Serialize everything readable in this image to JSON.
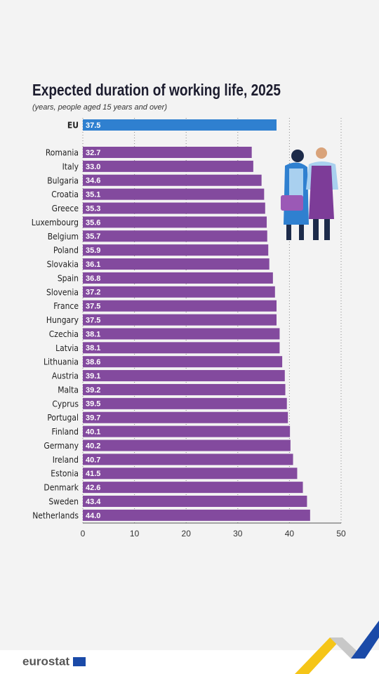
{
  "chart_data": {
    "type": "bar",
    "orientation": "horizontal",
    "title": "Expected duration of working life, 2025",
    "subtitle": "(years, people aged 15 years and over)",
    "categories": [
      "EU",
      "Romania",
      "Italy",
      "Bulgaria",
      "Croatia",
      "Greece",
      "Luxembourg",
      "Belgium",
      "Poland",
      "Slovakia",
      "Spain",
      "Slovenia",
      "France",
      "Hungary",
      "Czechia",
      "Latvia",
      "Lithuania",
      "Austria",
      "Malta",
      "Cyprus",
      "Portugal",
      "Finland",
      "Germany",
      "Ireland",
      "Estonia",
      "Denmark",
      "Sweden",
      "Netherlands"
    ],
    "values": [
      37.5,
      32.7,
      33.0,
      34.6,
      35.1,
      35.3,
      35.6,
      35.7,
      35.9,
      36.1,
      36.8,
      37.2,
      37.5,
      37.5,
      38.1,
      38.1,
      38.6,
      39.1,
      39.2,
      39.5,
      39.7,
      40.1,
      40.2,
      40.7,
      41.5,
      42.6,
      43.4,
      44.0
    ],
    "value_labels": [
      "37.5",
      "32.7",
      "33.0",
      "34.6",
      "35.1",
      "35.3",
      "35.6",
      "35.7",
      "35.9",
      "36.1",
      "36.8",
      "37.2",
      "37.5",
      "37.5",
      "38.1",
      "38.1",
      "38.6",
      "39.1",
      "39.2",
      "39.5",
      "39.7",
      "40.1",
      "40.2",
      "40.7",
      "41.5",
      "42.6",
      "43.4",
      "44.0"
    ],
    "colors": [
      "#2f80d0",
      "#834a9e",
      "#834a9e",
      "#834a9e",
      "#834a9e",
      "#834a9e",
      "#834a9e",
      "#834a9e",
      "#834a9e",
      "#834a9e",
      "#834a9e",
      "#834a9e",
      "#834a9e",
      "#834a9e",
      "#834a9e",
      "#834a9e",
      "#834a9e",
      "#834a9e",
      "#834a9e",
      "#834a9e",
      "#834a9e",
      "#834a9e",
      "#834a9e",
      "#834a9e",
      "#834a9e",
      "#834a9e",
      "#834a9e",
      "#834a9e"
    ],
    "xlim": [
      0,
      50
    ],
    "xticks": [
      0,
      10,
      20,
      30,
      40,
      50
    ],
    "grid": true
  },
  "footer": {
    "logo": "eurostat"
  }
}
